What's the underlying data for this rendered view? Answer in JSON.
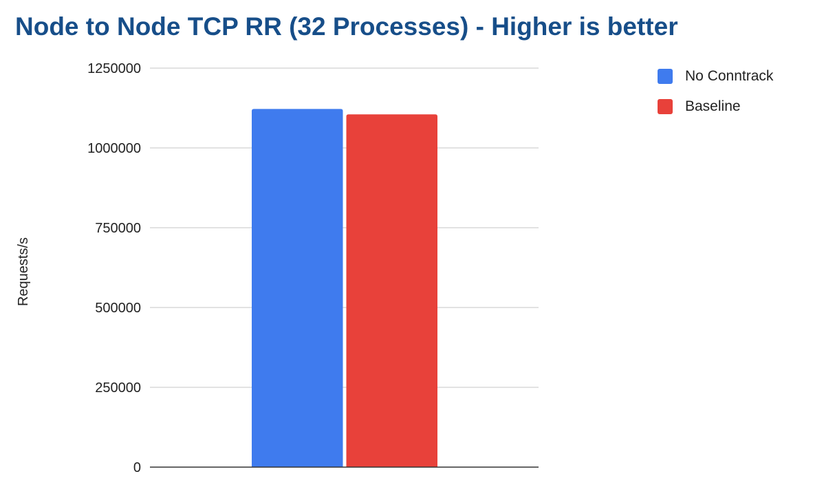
{
  "chart_data": {
    "type": "bar",
    "title": "Node to Node TCP RR (32 Processes) - Higher is better",
    "xlabel": "",
    "ylabel": "Requests/s",
    "ylim": [
      0,
      1250000
    ],
    "yticks": [
      0,
      250000,
      500000,
      750000,
      1000000,
      1250000
    ],
    "ytick_labels": [
      "0",
      "250000",
      "500000",
      "750000",
      "1000000",
      "1250000"
    ],
    "categories": [
      ""
    ],
    "series": [
      {
        "name": "No Conntrack",
        "values": [
          1122000
        ],
        "color": "#3f7bee"
      },
      {
        "name": "Baseline",
        "values": [
          1105000
        ],
        "color": "#e8413a"
      }
    ],
    "grid": true,
    "legend_position": "right"
  }
}
